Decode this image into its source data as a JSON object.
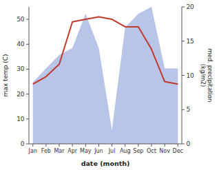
{
  "chart_data": {
    "type": "line",
    "categories": [
      "Jan",
      "Feb",
      "Mar",
      "Apr",
      "May",
      "Jun",
      "Jul",
      "Aug",
      "Sep",
      "Oct",
      "Nov",
      "Dec"
    ],
    "xlabel": "date (month)",
    "ylabel": "max temp (C)",
    "y2label": "med. precipitation\n(kg/m2)",
    "ylim": [
      0,
      55
    ],
    "yticks": [
      0,
      10,
      20,
      30,
      40,
      50
    ],
    "y2lim": [
      0,
      20
    ],
    "y2ticks": [
      0,
      5,
      10,
      15,
      20
    ],
    "grid": false,
    "series": [
      {
        "type": "area",
        "axis": "y2",
        "color": "#b8c4e8",
        "values": [
          9,
          11,
          13,
          14,
          19,
          14,
          2,
          17,
          19,
          20,
          11,
          11
        ]
      },
      {
        "type": "line",
        "color": "#c0392b",
        "values": [
          24,
          27,
          32,
          49,
          50,
          51,
          50,
          47,
          47,
          38,
          25,
          24
        ]
      }
    ]
  }
}
